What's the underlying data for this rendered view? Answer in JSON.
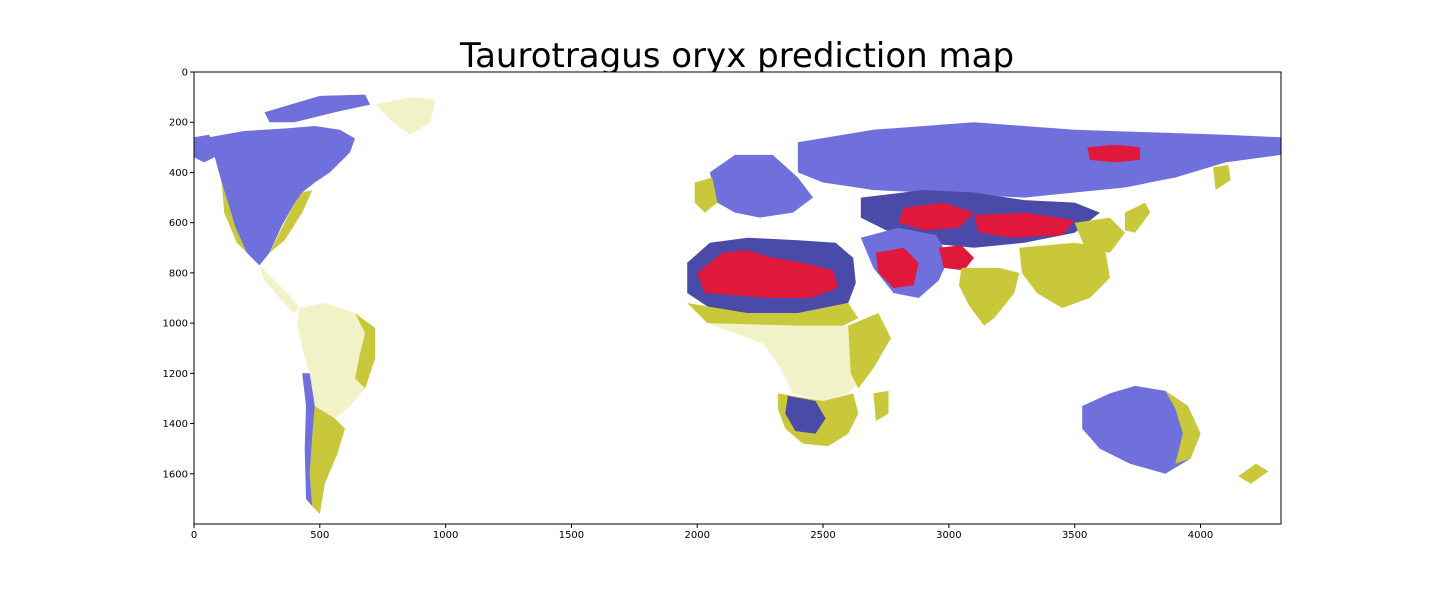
{
  "title": "Taurotragus oryx prediction map",
  "x_axis": {
    "range": [
      0,
      4320
    ],
    "ticks": [
      {
        "value": 0,
        "label": "0"
      },
      {
        "value": 500,
        "label": "500"
      },
      {
        "value": 1000,
        "label": "1000"
      },
      {
        "value": 1500,
        "label": "1500"
      },
      {
        "value": 2000,
        "label": "2000"
      },
      {
        "value": 2500,
        "label": "2500"
      },
      {
        "value": 3000,
        "label": "3000"
      },
      {
        "value": 3500,
        "label": "3500"
      },
      {
        "value": 4000,
        "label": "4000"
      }
    ]
  },
  "y_axis": {
    "range": [
      0,
      1800
    ],
    "inverted": true,
    "ticks": [
      {
        "value": 0,
        "label": "0"
      },
      {
        "value": 200,
        "label": "200"
      },
      {
        "value": 400,
        "label": "400"
      },
      {
        "value": 600,
        "label": "600"
      },
      {
        "value": 800,
        "label": "800"
      },
      {
        "value": 1000,
        "label": "1000"
      },
      {
        "value": 1200,
        "label": "1200"
      },
      {
        "value": 1400,
        "label": "1400"
      },
      {
        "value": 1600,
        "label": "1600"
      }
    ]
  },
  "colors": {
    "ocean": "#ffffff",
    "low": "#c8c83a",
    "very_low": "#f2f2c8",
    "medium": "#7070dd",
    "medium_dark": "#4a4aa8",
    "high": "#e0183c"
  },
  "regions": [
    {
      "name": "north-america",
      "tone": "medium",
      "points": [
        [
          60,
          260
        ],
        [
          200,
          235
        ],
        [
          360,
          225
        ],
        [
          480,
          215
        ],
        [
          580,
          230
        ],
        [
          640,
          265
        ],
        [
          620,
          320
        ],
        [
          540,
          400
        ],
        [
          480,
          440
        ],
        [
          430,
          480
        ],
        [
          395,
          530
        ],
        [
          350,
          610
        ],
        [
          300,
          720
        ],
        [
          260,
          770
        ],
        [
          210,
          720
        ],
        [
          165,
          620
        ],
        [
          110,
          440
        ],
        [
          80,
          330
        ]
      ]
    },
    {
      "name": "north-america-east-coast",
      "tone": "low",
      "points": [
        [
          300,
          720
        ],
        [
          395,
          530
        ],
        [
          430,
          480
        ],
        [
          470,
          470
        ],
        [
          430,
          560
        ],
        [
          360,
          670
        ]
      ]
    },
    {
      "name": "north-america-west-coast",
      "tone": "low",
      "points": [
        [
          110,
          440
        ],
        [
          165,
          620
        ],
        [
          210,
          720
        ],
        [
          170,
          680
        ],
        [
          120,
          560
        ]
      ]
    },
    {
      "name": "alaska",
      "tone": "medium",
      "points": [
        [
          0,
          260
        ],
        [
          60,
          250
        ],
        [
          100,
          330
        ],
        [
          40,
          360
        ],
        [
          0,
          340
        ]
      ]
    },
    {
      "name": "canadian-arctic",
      "tone": "medium",
      "points": [
        [
          280,
          160
        ],
        [
          500,
          95
        ],
        [
          680,
          90
        ],
        [
          700,
          130
        ],
        [
          560,
          160
        ],
        [
          400,
          200
        ],
        [
          300,
          200
        ]
      ]
    },
    {
      "name": "greenland",
      "tone": "very_low",
      "points": [
        [
          720,
          130
        ],
        [
          860,
          100
        ],
        [
          960,
          110
        ],
        [
          940,
          200
        ],
        [
          860,
          250
        ],
        [
          790,
          200
        ]
      ]
    },
    {
      "name": "central-america",
      "tone": "very_low",
      "points": [
        [
          260,
          770
        ],
        [
          330,
          840
        ],
        [
          380,
          890
        ],
        [
          420,
          940
        ],
        [
          395,
          960
        ],
        [
          340,
          900
        ],
        [
          280,
          830
        ]
      ]
    },
    {
      "name": "south-america-north",
      "tone": "very_low",
      "points": [
        [
          420,
          940
        ],
        [
          520,
          920
        ],
        [
          640,
          960
        ],
        [
          720,
          1020
        ],
        [
          720,
          1140
        ],
        [
          680,
          1260
        ],
        [
          620,
          1330
        ],
        [
          560,
          1380
        ],
        [
          520,
          1400
        ],
        [
          480,
          1330
        ],
        [
          460,
          1200
        ],
        [
          430,
          1100
        ],
        [
          410,
          1000
        ]
      ]
    },
    {
      "name": "south-america-east",
      "tone": "low",
      "points": [
        [
          640,
          960
        ],
        [
          720,
          1020
        ],
        [
          720,
          1140
        ],
        [
          680,
          1260
        ],
        [
          640,
          1220
        ],
        [
          660,
          1120
        ],
        [
          680,
          1040
        ]
      ]
    },
    {
      "name": "south-america-south",
      "tone": "low",
      "points": [
        [
          480,
          1330
        ],
        [
          560,
          1380
        ],
        [
          600,
          1420
        ],
        [
          570,
          1520
        ],
        [
          520,
          1640
        ],
        [
          500,
          1760
        ],
        [
          470,
          1730
        ],
        [
          460,
          1600
        ],
        [
          470,
          1450
        ]
      ]
    },
    {
      "name": "andes",
      "tone": "medium",
      "points": [
        [
          460,
          1200
        ],
        [
          480,
          1330
        ],
        [
          470,
          1450
        ],
        [
          460,
          1600
        ],
        [
          470,
          1730
        ],
        [
          445,
          1700
        ],
        [
          440,
          1500
        ],
        [
          445,
          1330
        ],
        [
          430,
          1200
        ]
      ]
    },
    {
      "name": "europe",
      "tone": "medium",
      "points": [
        [
          2050,
          400
        ],
        [
          2150,
          330
        ],
        [
          2300,
          330
        ],
        [
          2400,
          420
        ],
        [
          2460,
          500
        ],
        [
          2380,
          560
        ],
        [
          2250,
          580
        ],
        [
          2150,
          560
        ],
        [
          2080,
          520
        ]
      ]
    },
    {
      "name": "europe-west",
      "tone": "low",
      "points": [
        [
          1990,
          440
        ],
        [
          2060,
          420
        ],
        [
          2080,
          520
        ],
        [
          2030,
          560
        ],
        [
          1990,
          520
        ]
      ]
    },
    {
      "name": "russia-siberia",
      "tone": "medium",
      "points": [
        [
          2400,
          280
        ],
        [
          2700,
          230
        ],
        [
          3100,
          200
        ],
        [
          3500,
          230
        ],
        [
          3800,
          240
        ],
        [
          4100,
          250
        ],
        [
          4320,
          260
        ],
        [
          4320,
          330
        ],
        [
          4100,
          360
        ],
        [
          3900,
          420
        ],
        [
          3700,
          460
        ],
        [
          3500,
          480
        ],
        [
          3300,
          500
        ],
        [
          3100,
          490
        ],
        [
          2900,
          480
        ],
        [
          2700,
          470
        ],
        [
          2500,
          440
        ],
        [
          2400,
          400
        ]
      ]
    },
    {
      "name": "siberia-hotspot",
      "tone": "high",
      "points": [
        [
          3550,
          300
        ],
        [
          3660,
          290
        ],
        [
          3760,
          300
        ],
        [
          3760,
          350
        ],
        [
          3660,
          360
        ],
        [
          3560,
          350
        ]
      ]
    },
    {
      "name": "central-asia",
      "tone": "medium_dark",
      "points": [
        [
          2650,
          500
        ],
        [
          2900,
          470
        ],
        [
          3100,
          480
        ],
        [
          3300,
          510
        ],
        [
          3500,
          520
        ],
        [
          3600,
          560
        ],
        [
          3500,
          640
        ],
        [
          3300,
          680
        ],
        [
          3100,
          700
        ],
        [
          2900,
          680
        ],
        [
          2750,
          630
        ],
        [
          2650,
          580
        ]
      ]
    },
    {
      "name": "central-asia-hotspot",
      "tone": "high",
      "points": [
        [
          2820,
          540
        ],
        [
          2980,
          520
        ],
        [
          3100,
          560
        ],
        [
          3040,
          620
        ],
        [
          2900,
          630
        ],
        [
          2800,
          600
        ]
      ]
    },
    {
      "name": "china-hotspot",
      "tone": "high",
      "points": [
        [
          3100,
          570
        ],
        [
          3300,
          560
        ],
        [
          3500,
          590
        ],
        [
          3450,
          650
        ],
        [
          3250,
          660
        ],
        [
          3120,
          640
        ]
      ]
    },
    {
      "name": "middle-east",
      "tone": "medium",
      "points": [
        [
          2650,
          660
        ],
        [
          2800,
          620
        ],
        [
          2950,
          650
        ],
        [
          3000,
          740
        ],
        [
          2960,
          830
        ],
        [
          2880,
          900
        ],
        [
          2780,
          880
        ],
        [
          2700,
          780
        ]
      ]
    },
    {
      "name": "arabia-hotspot",
      "tone": "high",
      "points": [
        [
          2710,
          720
        ],
        [
          2820,
          700
        ],
        [
          2880,
          760
        ],
        [
          2860,
          850
        ],
        [
          2780,
          860
        ],
        [
          2720,
          800
        ]
      ]
    },
    {
      "name": "iran-hotspot",
      "tone": "high",
      "points": [
        [
          2960,
          700
        ],
        [
          3050,
          690
        ],
        [
          3100,
          740
        ],
        [
          3060,
          790
        ],
        [
          2980,
          780
        ]
      ]
    },
    {
      "name": "india",
      "tone": "low",
      "points": [
        [
          3050,
          780
        ],
        [
          3200,
          780
        ],
        [
          3280,
          800
        ],
        [
          3260,
          880
        ],
        [
          3180,
          980
        ],
        [
          3140,
          1010
        ],
        [
          3080,
          930
        ],
        [
          3040,
          850
        ]
      ]
    },
    {
      "name": "southeast-asia",
      "tone": "low",
      "points": [
        [
          3280,
          700
        ],
        [
          3500,
          680
        ],
        [
          3620,
          700
        ],
        [
          3640,
          820
        ],
        [
          3560,
          900
        ],
        [
          3450,
          940
        ],
        [
          3350,
          880
        ],
        [
          3290,
          800
        ]
      ]
    },
    {
      "name": "east-asia",
      "tone": "low",
      "points": [
        [
          3500,
          600
        ],
        [
          3640,
          580
        ],
        [
          3700,
          640
        ],
        [
          3640,
          720
        ],
        [
          3540,
          700
        ]
      ]
    },
    {
      "name": "japan",
      "tone": "low",
      "points": [
        [
          3700,
          560
        ],
        [
          3780,
          520
        ],
        [
          3800,
          560
        ],
        [
          3740,
          640
        ],
        [
          3700,
          630
        ]
      ]
    },
    {
      "name": "kamchatka",
      "tone": "low",
      "points": [
        [
          4050,
          380
        ],
        [
          4110,
          370
        ],
        [
          4120,
          430
        ],
        [
          4060,
          470
        ]
      ]
    },
    {
      "name": "north-africa",
      "tone": "medium_dark",
      "points": [
        [
          1960,
          760
        ],
        [
          2050,
          680
        ],
        [
          2200,
          660
        ],
        [
          2400,
          670
        ],
        [
          2550,
          680
        ],
        [
          2620,
          740
        ],
        [
          2630,
          840
        ],
        [
          2600,
          920
        ],
        [
          2400,
          960
        ],
        [
          2200,
          960
        ],
        [
          2050,
          940
        ],
        [
          1960,
          880
        ]
      ]
    },
    {
      "name": "sahara-hotspot",
      "tone": "high",
      "points": [
        [
          2000,
          800
        ],
        [
          2100,
          720
        ],
        [
          2200,
          710
        ],
        [
          2300,
          740
        ],
        [
          2420,
          760
        ],
        [
          2540,
          790
        ],
        [
          2560,
          860
        ],
        [
          2450,
          900
        ],
        [
          2300,
          900
        ],
        [
          2150,
          890
        ],
        [
          2030,
          880
        ]
      ]
    },
    {
      "name": "sahel",
      "tone": "low",
      "points": [
        [
          1960,
          920
        ],
        [
          2200,
          960
        ],
        [
          2400,
          960
        ],
        [
          2600,
          920
        ],
        [
          2640,
          980
        ],
        [
          2560,
          1020
        ],
        [
          2400,
          1010
        ],
        [
          2200,
          1010
        ],
        [
          2040,
          1000
        ]
      ]
    },
    {
      "name": "central-africa",
      "tone": "very_low",
      "points": [
        [
          2040,
          1000
        ],
        [
          2400,
          1010
        ],
        [
          2600,
          1010
        ],
        [
          2700,
          1080
        ],
        [
          2680,
          1200
        ],
        [
          2600,
          1280
        ],
        [
          2500,
          1310
        ],
        [
          2380,
          1280
        ],
        [
          2320,
          1160
        ],
        [
          2260,
          1080
        ],
        [
          2150,
          1040
        ]
      ]
    },
    {
      "name": "east-africa",
      "tone": "low",
      "points": [
        [
          2600,
          1010
        ],
        [
          2720,
          960
        ],
        [
          2770,
          1060
        ],
        [
          2700,
          1180
        ],
        [
          2640,
          1260
        ],
        [
          2610,
          1200
        ]
      ]
    },
    {
      "name": "southern-africa",
      "tone": "low",
      "points": [
        [
          2320,
          1280
        ],
        [
          2500,
          1310
        ],
        [
          2620,
          1280
        ],
        [
          2640,
          1360
        ],
        [
          2600,
          1440
        ],
        [
          2520,
          1490
        ],
        [
          2420,
          1480
        ],
        [
          2350,
          1420
        ],
        [
          2320,
          1340
        ]
      ]
    },
    {
      "name": "southern-africa-core",
      "tone": "medium_dark",
      "points": [
        [
          2360,
          1290
        ],
        [
          2470,
          1310
        ],
        [
          2510,
          1380
        ],
        [
          2470,
          1440
        ],
        [
          2390,
          1430
        ],
        [
          2350,
          1360
        ]
      ]
    },
    {
      "name": "madagascar",
      "tone": "low",
      "points": [
        [
          2700,
          1280
        ],
        [
          2760,
          1270
        ],
        [
          2760,
          1360
        ],
        [
          2710,
          1390
        ]
      ]
    },
    {
      "name": "australia",
      "tone": "medium",
      "points": [
        [
          3530,
          1330
        ],
        [
          3640,
          1280
        ],
        [
          3740,
          1250
        ],
        [
          3860,
          1270
        ],
        [
          3950,
          1330
        ],
        [
          4000,
          1440
        ],
        [
          3960,
          1540
        ],
        [
          3860,
          1600
        ],
        [
          3720,
          1560
        ],
        [
          3600,
          1500
        ],
        [
          3530,
          1420
        ]
      ]
    },
    {
      "name": "australia-east-coast",
      "tone": "low",
      "points": [
        [
          3860,
          1270
        ],
        [
          3950,
          1330
        ],
        [
          4000,
          1440
        ],
        [
          3960,
          1540
        ],
        [
          3900,
          1560
        ],
        [
          3930,
          1440
        ],
        [
          3900,
          1340
        ]
      ]
    },
    {
      "name": "new-zealand",
      "tone": "low",
      "points": [
        [
          4150,
          1610
        ],
        [
          4220,
          1560
        ],
        [
          4270,
          1590
        ],
        [
          4200,
          1640
        ]
      ]
    }
  ]
}
